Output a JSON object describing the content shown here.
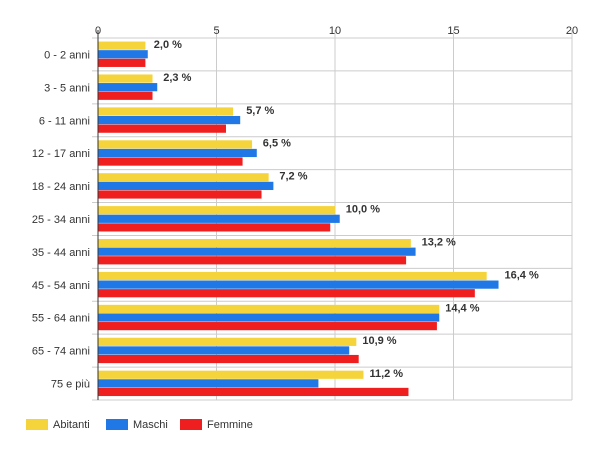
{
  "chart_data": {
    "type": "bar",
    "orientation": "horizontal",
    "categories": [
      "0 - 2 anni",
      "3 - 5 anni",
      "6 - 11 anni",
      "12 - 17 anni",
      "18 - 24 anni",
      "25 - 34 anni",
      "35 - 44 anni",
      "45 - 54 anni",
      "55 - 64 anni",
      "65 - 74 anni",
      "75 e più"
    ],
    "series": [
      {
        "name": "Abitanti",
        "color": "#f5d33a",
        "values": [
          2.0,
          2.3,
          5.7,
          6.5,
          7.2,
          10.0,
          13.2,
          16.4,
          14.4,
          10.9,
          11.2
        ]
      },
      {
        "name": "Maschi",
        "color": "#1f78e6",
        "values": [
          2.1,
          2.5,
          6.0,
          6.7,
          7.4,
          10.2,
          13.4,
          16.9,
          14.4,
          10.6,
          9.3
        ]
      },
      {
        "name": "Femmine",
        "color": "#ef1f1f",
        "values": [
          2.0,
          2.3,
          5.4,
          6.1,
          6.9,
          9.8,
          13.0,
          15.9,
          14.3,
          11.0,
          13.1
        ]
      }
    ],
    "data_labels": [
      "2,0 %",
      "2,3 %",
      "5,7 %",
      "6,5 %",
      "7,2 %",
      "10,0 %",
      "13,2 %",
      "16,4 %",
      "14,4 %",
      "10,9 %",
      "11,2 %"
    ],
    "xlim": [
      0,
      20
    ],
    "xticks": [
      "0",
      "5",
      "10",
      "15",
      "20"
    ],
    "grid": true,
    "legend_position": "bottom-left",
    "title": "",
    "xlabel": "",
    "ylabel": ""
  }
}
